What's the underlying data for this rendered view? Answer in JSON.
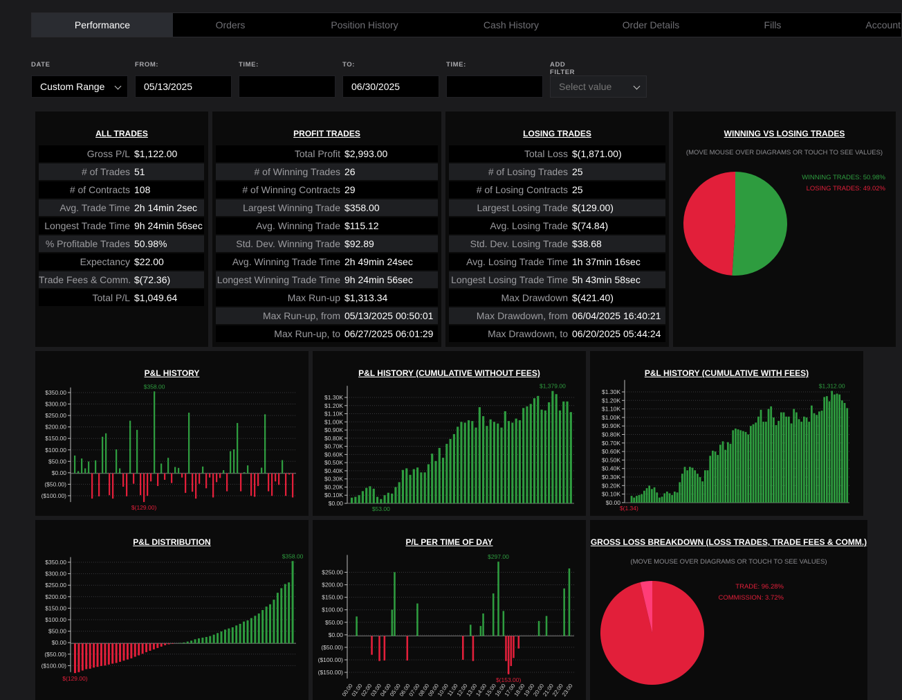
{
  "tabs": [
    "Performance",
    "Orders",
    "Position History",
    "Cash History",
    "Order Details",
    "Fills",
    "Account"
  ],
  "filters": {
    "date": {
      "label": "DATE",
      "value": "Custom Range"
    },
    "from": {
      "label": "FROM:",
      "value": "05/13/2025"
    },
    "from_time": {
      "label": "TIME:",
      "value": ""
    },
    "to": {
      "label": "TO:",
      "value": "06/30/2025"
    },
    "to_time": {
      "label": "TIME:",
      "value": ""
    },
    "add_filter": {
      "label": "ADD FILTER",
      "placeholder": "Select value"
    }
  },
  "all_trades": {
    "title": "ALL TRADES",
    "rows": [
      {
        "label": "Gross P/L",
        "value": "$1,122.00"
      },
      {
        "label": "# of Trades",
        "value": "51"
      },
      {
        "label": "# of Contracts",
        "value": "108"
      },
      {
        "label": "Avg. Trade Time",
        "value": "2h 14min 2sec"
      },
      {
        "label": "Longest Trade Time",
        "value": "9h 24min 56sec"
      },
      {
        "label": "% Profitable Trades",
        "value": "50.98%"
      },
      {
        "label": "Expectancy",
        "value": "$22.00"
      },
      {
        "label": "Trade Fees & Comm.",
        "value": "$(72.36)"
      },
      {
        "label": "Total P/L",
        "value": "$1,049.64"
      }
    ]
  },
  "profit_trades": {
    "title": "PROFIT TRADES",
    "rows": [
      {
        "label": "Total Profit",
        "value": "$2,993.00"
      },
      {
        "label": "# of Winning Trades",
        "value": "26"
      },
      {
        "label": "# of Winning Contracts",
        "value": "29"
      },
      {
        "label": "Largest Winning Trade",
        "value": "$358.00"
      },
      {
        "label": "Avg. Winning Trade",
        "value": "$115.12"
      },
      {
        "label": "Std. Dev. Winning Trade",
        "value": "$92.89"
      },
      {
        "label": "Avg. Winning Trade Time",
        "value": "2h 49min 24sec"
      },
      {
        "label": "Longest Winning Trade Time",
        "value": "9h 24min 56sec"
      },
      {
        "label": "Max Run-up",
        "value": "$1,313.34"
      },
      {
        "label": "Max Run-up, from",
        "value": "05/13/2025 00:50:01"
      },
      {
        "label": "Max Run-up, to",
        "value": "06/27/2025 06:01:29"
      }
    ]
  },
  "losing_trades": {
    "title": "LOSING TRADES",
    "rows": [
      {
        "label": "Total Loss",
        "value": "$(1,871.00)"
      },
      {
        "label": "# of Losing Trades",
        "value": "25"
      },
      {
        "label": "# of Losing Contracts",
        "value": "25"
      },
      {
        "label": "Largest Losing Trade",
        "value": "$(129.00)"
      },
      {
        "label": "Avg. Losing Trade",
        "value": "$(74.84)"
      },
      {
        "label": "Std. Dev. Losing Trade",
        "value": "$38.68"
      },
      {
        "label": "Avg. Losing Trade Time",
        "value": "1h 37min 16sec"
      },
      {
        "label": "Longest Losing Trade Time",
        "value": "5h 43min 58sec"
      },
      {
        "label": "Max Drawdown",
        "value": "$(421.40)"
      },
      {
        "label": "Max Drawdown, from",
        "value": "06/04/2025 16:40:21"
      },
      {
        "label": "Max Drawdown, to",
        "value": "06/20/2025 05:44:24"
      }
    ]
  },
  "win_loss": {
    "title": "WINNING VS LOSING TRADES",
    "note": "(MOVE MOUSE OVER DIAGRAMS OR TOUCH TO SEE VALUES)",
    "legend": [
      "WINNING TRADES: 50.98%",
      "LOSING TRADES: 49.02%"
    ]
  },
  "gross_loss": {
    "title": "GROSS LOSS BREAKDOWN (LOSS TRADES, TRADE FEES & COMM.)",
    "note": "(MOVE MOUSE OVER DIAGRAMS OR TOUCH TO SEE VALUES)",
    "legend": [
      "TRADE: 96.28%",
      "COMMISSION: 3.72%"
    ]
  },
  "colors": {
    "green": "#2e9c3f",
    "red": "#e21f3a",
    "pink": "#ff3d78",
    "bg": "#1b1b1d",
    "panel": "#0b0b0b"
  },
  "chart_data": [
    {
      "id": "win_loss_pie",
      "type": "pie",
      "labels": [
        "WINNING TRADES",
        "LOSING TRADES"
      ],
      "values": [
        50.98,
        49.02
      ],
      "colors": [
        "#2e9c3f",
        "#e21f3a"
      ]
    },
    {
      "id": "pnl_history",
      "type": "bar",
      "title": "P&L HISTORY",
      "yticks": [
        "$350.00",
        "$300.00",
        "$250.00",
        "$200.00",
        "$150.00",
        "$100.00",
        "$50.00",
        "$0.00",
        "($50.00)",
        "($100.00)"
      ],
      "ylim": [
        -125,
        360
      ],
      "max_label": "$358.00",
      "min_label": "$(129.00)",
      "values": [
        78,
        10,
        65,
        22,
        52,
        -110,
        57,
        -100,
        160,
        175,
        -95,
        -110,
        105,
        22,
        -58,
        -100,
        230,
        -45,
        190,
        -95,
        -125,
        -98,
        -35,
        358,
        -55,
        43,
        -28,
        68,
        -42,
        28,
        24,
        -18,
        -85,
        265,
        -80,
        -110,
        -45,
        30,
        -65,
        -18,
        -105,
        -38,
        -20,
        14,
        -78,
        97,
        105,
        220,
        -78,
        5,
        35,
        -98,
        -102,
        -55,
        25,
        258,
        -78,
        -98,
        -35,
        -50,
        58,
        -98,
        -5,
        -105
      ]
    },
    {
      "id": "pnl_cum_without_fees",
      "type": "bar",
      "title": "P&L HISTORY (CUMULATIVE WITHOUT FEES)",
      "yticks": [
        "$1.30K",
        "$1.20K",
        "$1.10K",
        "$1.00K",
        "$0.90K",
        "$0.80K",
        "$0.70K",
        "$0.60K",
        "$0.50K",
        "$0.40K",
        "$0.30K",
        "$0.20K",
        "$0.10K",
        "$0.00"
      ],
      "ylim": [
        0,
        1400
      ],
      "max_label": "$1,379.00",
      "min_label": "$53.00",
      "values": [
        70,
        80,
        100,
        150,
        190,
        210,
        180,
        80,
        53,
        100,
        130,
        120,
        200,
        260,
        410,
        430,
        350,
        420,
        440,
        380,
        380,
        480,
        610,
        520,
        680,
        560,
        730,
        790,
        850,
        940,
        1000,
        990,
        1020,
        1010,
        930,
        1180,
        1070,
        950,
        1030,
        1000,
        980,
        930,
        1130,
        1010,
        990,
        1040,
        1020,
        1170,
        1190,
        1220,
        1290,
        1318,
        1150,
        1140,
        1240,
        1379,
        1340,
        1140,
        1250,
        1250,
        1120
      ]
    },
    {
      "id": "pnl_cum_with_fees",
      "type": "bar",
      "title": "P&L HISTORY (CUMULATIVE WITH FEES)",
      "yticks": [
        "$1.30K",
        "$1.20K",
        "$1.10K",
        "$1.00K",
        "$0.90K",
        "$0.80K",
        "$0.70K",
        "$0.60K",
        "$0.50K",
        "$0.40K",
        "$0.30K",
        "$0.20K",
        "$0.10K",
        "$0.00"
      ],
      "ylim": [
        0,
        1400
      ],
      "max_label": "$1,312.00",
      "min_label": "$(1.34)",
      "values": [
        -1.34,
        80,
        60,
        80,
        90,
        100,
        140,
        170,
        200,
        160,
        180,
        120,
        60,
        70,
        110,
        130,
        110,
        90,
        130,
        120,
        240,
        340,
        420,
        380,
        420,
        410,
        380,
        340,
        300,
        250,
        380,
        380,
        550,
        610,
        600,
        560,
        680,
        720,
        620,
        710,
        690,
        850,
        870,
        860,
        850,
        840,
        830,
        800,
        900,
        920,
        940,
        1010,
        1090,
        950,
        950,
        1100,
        1130,
        1000,
        910,
        960,
        1060,
        1060,
        1010,
        1010,
        930,
        1100,
        1060,
        980,
        950,
        1010,
        1000,
        950,
        1140,
        1050,
        1030,
        1070,
        1080,
        1240,
        1250,
        1190,
        1312,
        1270,
        1280,
        1270,
        1200,
        1170,
        1110
      ]
    },
    {
      "id": "pnl_distribution",
      "type": "bar",
      "title": "P&L DISTRIBUTION",
      "yticks": [
        "$350.00",
        "$300.00",
        "$250.00",
        "$200.00",
        "$150.00",
        "$100.00",
        "$50.00",
        "$0.00",
        "($50.00)",
        "($100.00)"
      ],
      "ylim": [
        -125,
        360
      ],
      "max_label": "$358.00",
      "min_label": "$(129.00)",
      "values": [
        -129,
        -125,
        -118,
        -112,
        -110,
        -105,
        -102,
        -98,
        -96,
        -92,
        -88,
        -85,
        -80,
        -75,
        -70,
        -65,
        -58,
        -52,
        -45,
        -38,
        -32,
        -26,
        -20,
        -14,
        -8,
        -4,
        -2,
        0,
        2,
        4,
        8,
        12,
        18,
        22,
        25,
        28,
        32,
        38,
        45,
        52,
        60,
        65,
        70,
        78,
        85,
        95,
        100,
        110,
        120,
        130,
        145,
        160,
        170,
        190,
        220,
        240,
        258,
        265,
        358
      ]
    },
    {
      "id": "pl_per_time_of_day",
      "type": "bar",
      "title": "P/L PER TIME OF DAY",
      "yticks": [
        "$250.00",
        "$200.00",
        "$150.00",
        "$100.00",
        "$50.00",
        "$0.00",
        "($50.00)",
        "($100.00)",
        "($150.00)"
      ],
      "ylim": [
        -170,
        310
      ],
      "max_label": "$297.00",
      "min_label": "$(153.00)",
      "xticks": [
        "00:00",
        "01:00",
        "02:00",
        "03:00",
        "04:00",
        "05:00",
        "06:00",
        "07:00",
        "08:00",
        "09:00",
        "10:00",
        "11:00",
        "12:00",
        "13:00",
        "14:00",
        "15:00",
        "16:00",
        "17:00",
        "18:00",
        "19:00",
        "20:00",
        "21:00",
        "22:00",
        "23:00"
      ],
      "values": [
        0,
        0,
        78,
        0,
        0,
        0,
        0,
        0,
        -75,
        0,
        0,
        -100,
        0,
        -98,
        0,
        0,
        105,
        255,
        0,
        0,
        0,
        0,
        -98,
        0,
        0,
        0,
        130,
        0,
        0,
        0,
        0,
        0,
        0,
        0,
        0,
        0,
        0,
        0,
        0,
        0,
        0,
        0,
        0,
        0,
        -95,
        0,
        0,
        45,
        -100,
        0,
        0,
        40,
        90,
        0,
        0,
        0,
        170,
        0,
        297,
        0,
        100,
        -100,
        -153,
        -120,
        -88,
        0,
        -50,
        0,
        0,
        0,
        0,
        0,
        0,
        0,
        60,
        0,
        0,
        80,
        0,
        0,
        0,
        0,
        0,
        0,
        190,
        0,
        270,
        0
      ]
    },
    {
      "id": "gross_loss_pie",
      "type": "pie",
      "labels": [
        "TRADE",
        "COMMISSION"
      ],
      "values": [
        96.28,
        3.72
      ],
      "colors": [
        "#e21f3a",
        "#ff3d78"
      ]
    }
  ]
}
